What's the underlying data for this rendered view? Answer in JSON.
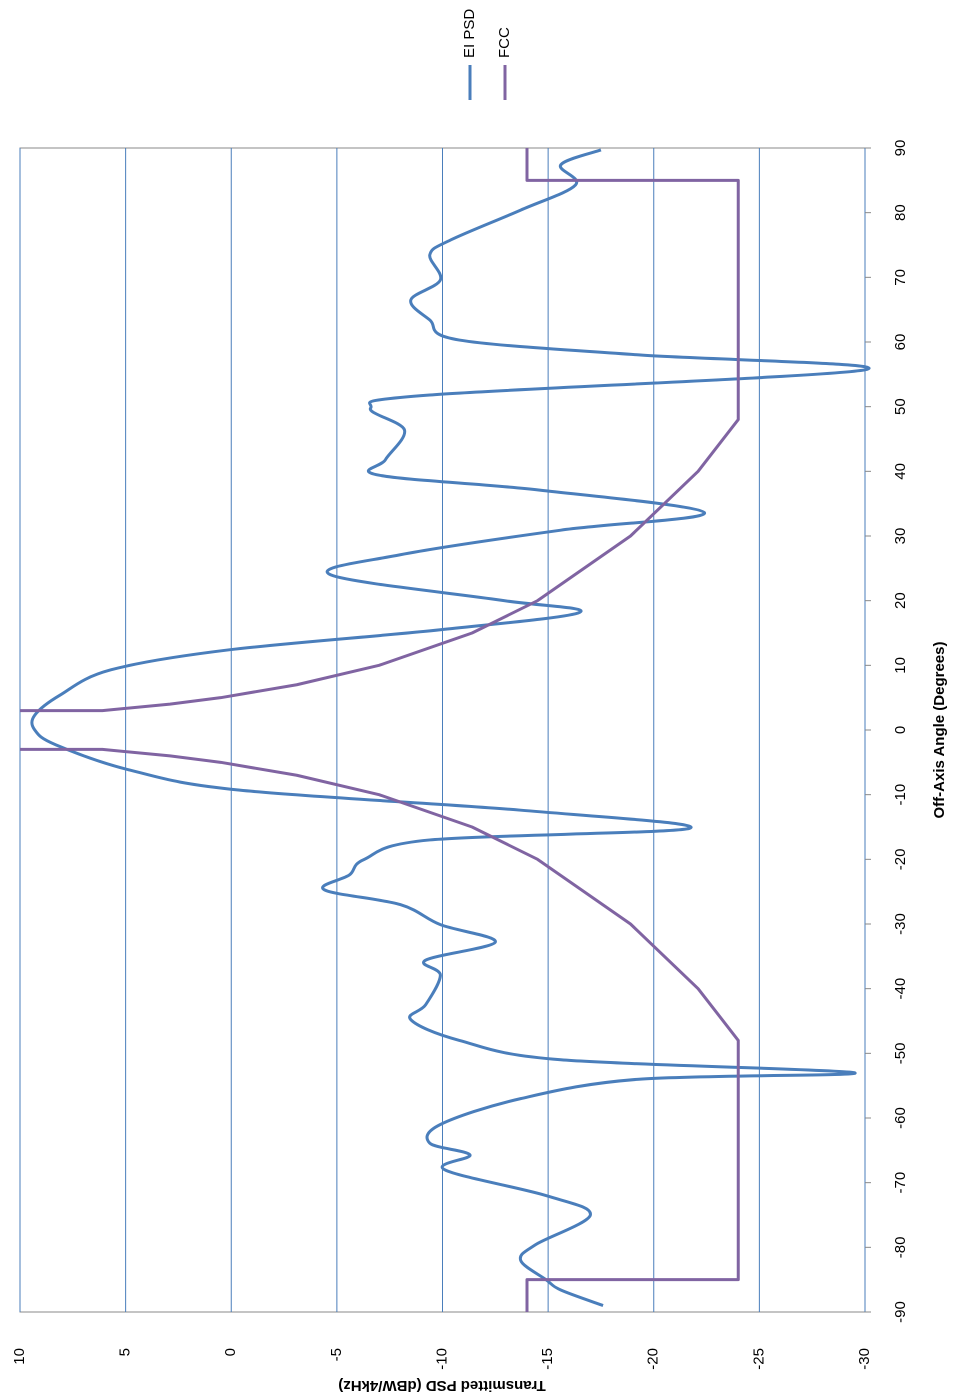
{
  "chart_data": {
    "type": "line",
    "x_label": "Off-Axis Angle (Degrees)",
    "y_label": "Transmitted PSD (dBW/4kHz)",
    "xlim": [
      -90,
      90
    ],
    "xticks": [
      -90,
      -80,
      -70,
      -60,
      -50,
      -40,
      -30,
      -20,
      -10,
      0,
      10,
      20,
      30,
      40,
      50,
      60,
      70,
      80,
      90
    ],
    "ylim": [
      -30,
      10
    ],
    "yticks": [
      10,
      5,
      0,
      -5,
      -10,
      -15,
      -20,
      -25,
      -30
    ],
    "grid": true,
    "grid_color": "#4a7ebb",
    "rotated": true,
    "legend": "right",
    "series": [
      {
        "name": "EI PSD",
        "color": "#4a7ebb",
        "smooth": true,
        "x": [
          -89,
          -86.6,
          -85,
          -82,
          -79.6,
          -75,
          -72,
          -68,
          -65.7,
          -63.9,
          -61,
          -57,
          -54,
          -53,
          -51,
          -48,
          -44.8,
          -42.5,
          -37.9,
          -35.6,
          -32.8,
          -30.1,
          -27,
          -24.7,
          -22.4,
          -20,
          -17,
          -15.2,
          -12.4,
          -9.3,
          -6.2,
          -2.3,
          0,
          2.3,
          5.4,
          9.3,
          12.4,
          15.5,
          18.2,
          20.1,
          24,
          27.1,
          30.9,
          33.6,
          37.1,
          39.4,
          41.8,
          46.4,
          49.8,
          51.8,
          55.7,
          58,
          60.3,
          63.4,
          66.5,
          69.6,
          73.5,
          75.8,
          80.4,
          84.3,
          87.4,
          89.7
        ],
        "values": [
          -17.6,
          -15.6,
          -14.9,
          -13.7,
          -14.4,
          -17,
          -14.9,
          -10.1,
          -11.3,
          -9.4,
          -9.9,
          -13.7,
          -19.3,
          -29.5,
          -15.6,
          -10.8,
          -8.5,
          -9.2,
          -9.9,
          -9.2,
          -12.5,
          -9.9,
          -8,
          -4.4,
          -5.6,
          -6.3,
          -9.4,
          -21.7,
          -13.7,
          -0.4,
          4.8,
          8.3,
          9.3,
          9.3,
          8.1,
          5.7,
          0.1,
          -9.9,
          -16.5,
          -12.7,
          -4.7,
          -8,
          -15.6,
          -22.4,
          -14.6,
          -7,
          -7.3,
          -8.2,
          -6.6,
          -9.4,
          -30,
          -19.3,
          -10.8,
          -9.4,
          -8.5,
          -9.9,
          -9.4,
          -10.4,
          -13.7,
          -16.3,
          -15.6,
          -17.5
        ]
      },
      {
        "name": "FCC",
        "color": "#8064a2",
        "smooth": false,
        "x": [
          -90,
          -85,
          -85,
          -48,
          -40,
          -30,
          -20,
          -15,
          -10,
          -7,
          -5,
          -4,
          -3,
          -3,
          0,
          3,
          3,
          4,
          5,
          7,
          10,
          15,
          20,
          30,
          40,
          48,
          85,
          85,
          90
        ],
        "values": [
          -14,
          -14,
          -24,
          -24,
          -22.1,
          -18.9,
          -14.5,
          -11.4,
          -7,
          -3.1,
          0.5,
          2.9,
          6.1,
          10,
          null,
          10,
          6.1,
          2.9,
          0.5,
          -3.1,
          -7,
          -11.4,
          -14.5,
          -18.9,
          -22.1,
          -24,
          -24,
          -14,
          -14
        ]
      }
    ]
  }
}
